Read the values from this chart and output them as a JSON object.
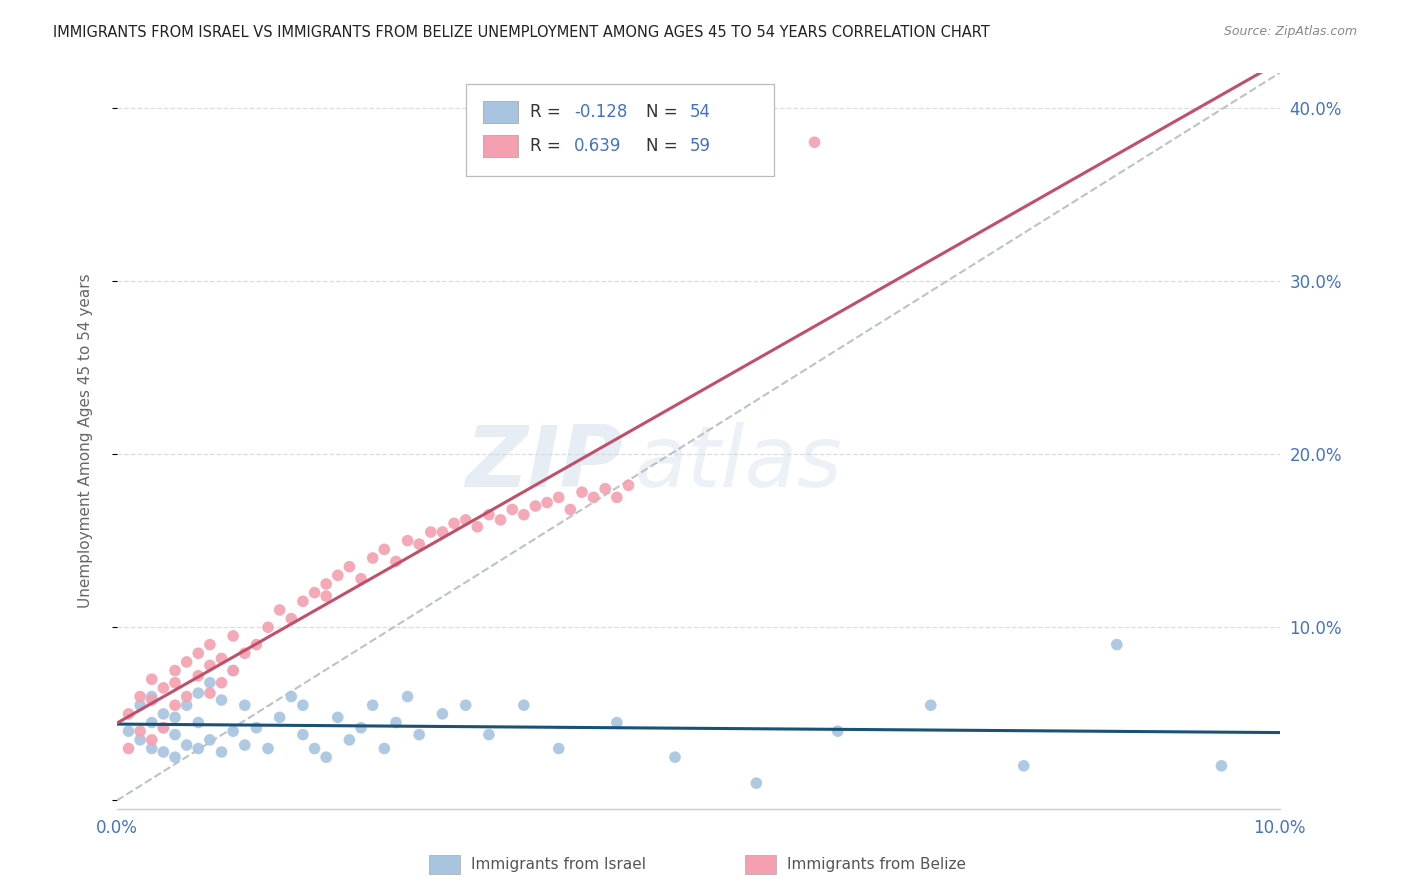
{
  "title": "IMMIGRANTS FROM ISRAEL VS IMMIGRANTS FROM BELIZE UNEMPLOYMENT AMONG AGES 45 TO 54 YEARS CORRELATION CHART",
  "source": "Source: ZipAtlas.com",
  "ylabel": "Unemployment Among Ages 45 to 54 years",
  "xlim": [
    0.0,
    0.1
  ],
  "ylim": [
    -0.005,
    0.42
  ],
  "yticks": [
    0.0,
    0.1,
    0.2,
    0.3,
    0.4
  ],
  "ytick_labels": [
    "",
    "10.0%",
    "20.0%",
    "30.0%",
    "40.0%"
  ],
  "israel_R": -0.128,
  "israel_N": 54,
  "belize_R": 0.639,
  "belize_N": 59,
  "israel_color": "#a8c4e0",
  "belize_color": "#f4a0b0",
  "israel_line_color": "#1a5276",
  "belize_line_color": "#c0506a",
  "diagonal_color": "#b0b8c0",
  "watermark_zip": "ZIP",
  "watermark_atlas": "atlas",
  "legend_israel_label": "Immigrants from Israel",
  "legend_belize_label": "Immigrants from Belize",
  "israel_x": [
    0.001,
    0.002,
    0.002,
    0.003,
    0.003,
    0.003,
    0.004,
    0.004,
    0.004,
    0.005,
    0.005,
    0.005,
    0.006,
    0.006,
    0.007,
    0.007,
    0.007,
    0.008,
    0.008,
    0.009,
    0.009,
    0.01,
    0.01,
    0.011,
    0.011,
    0.012,
    0.013,
    0.014,
    0.015,
    0.016,
    0.016,
    0.017,
    0.018,
    0.019,
    0.02,
    0.021,
    0.022,
    0.023,
    0.024,
    0.025,
    0.026,
    0.028,
    0.03,
    0.032,
    0.035,
    0.038,
    0.043,
    0.048,
    0.055,
    0.062,
    0.07,
    0.078,
    0.086,
    0.095
  ],
  "israel_y": [
    0.04,
    0.035,
    0.055,
    0.03,
    0.045,
    0.06,
    0.028,
    0.05,
    0.042,
    0.025,
    0.048,
    0.038,
    0.055,
    0.032,
    0.03,
    0.045,
    0.062,
    0.035,
    0.068,
    0.028,
    0.058,
    0.04,
    0.075,
    0.032,
    0.055,
    0.042,
    0.03,
    0.048,
    0.06,
    0.038,
    0.055,
    0.03,
    0.025,
    0.048,
    0.035,
    0.042,
    0.055,
    0.03,
    0.045,
    0.06,
    0.038,
    0.05,
    0.055,
    0.038,
    0.055,
    0.03,
    0.045,
    0.025,
    0.01,
    0.04,
    0.055,
    0.02,
    0.09,
    0.02
  ],
  "belize_x": [
    0.001,
    0.001,
    0.002,
    0.002,
    0.003,
    0.003,
    0.003,
    0.004,
    0.004,
    0.005,
    0.005,
    0.005,
    0.006,
    0.006,
    0.007,
    0.007,
    0.008,
    0.008,
    0.008,
    0.009,
    0.009,
    0.01,
    0.01,
    0.011,
    0.012,
    0.013,
    0.014,
    0.015,
    0.016,
    0.017,
    0.018,
    0.018,
    0.019,
    0.02,
    0.021,
    0.022,
    0.023,
    0.024,
    0.025,
    0.026,
    0.027,
    0.028,
    0.029,
    0.03,
    0.031,
    0.032,
    0.033,
    0.034,
    0.035,
    0.036,
    0.037,
    0.038,
    0.039,
    0.04,
    0.041,
    0.042,
    0.043,
    0.044,
    0.06
  ],
  "belize_y": [
    0.03,
    0.05,
    0.04,
    0.06,
    0.035,
    0.058,
    0.07,
    0.042,
    0.065,
    0.055,
    0.068,
    0.075,
    0.06,
    0.08,
    0.072,
    0.085,
    0.062,
    0.078,
    0.09,
    0.068,
    0.082,
    0.075,
    0.095,
    0.085,
    0.09,
    0.1,
    0.11,
    0.105,
    0.115,
    0.12,
    0.125,
    0.118,
    0.13,
    0.135,
    0.128,
    0.14,
    0.145,
    0.138,
    0.15,
    0.148,
    0.155,
    0.155,
    0.16,
    0.162,
    0.158,
    0.165,
    0.162,
    0.168,
    0.165,
    0.17,
    0.172,
    0.175,
    0.168,
    0.178,
    0.175,
    0.18,
    0.175,
    0.182,
    0.38
  ]
}
